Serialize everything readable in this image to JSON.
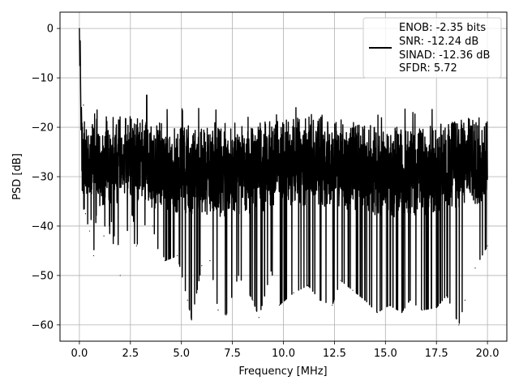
{
  "chart_data": {
    "type": "line",
    "title": "",
    "xlabel": "Frequency [MHz]",
    "ylabel": "PSD [dB]",
    "xlim": [
      -0.95,
      20.95
    ],
    "ylim": [
      -63.3,
      3.3
    ],
    "xticks": [
      0.0,
      2.5,
      5.0,
      7.5,
      10.0,
      12.5,
      15.0,
      17.5,
      20.0
    ],
    "xtick_labels": [
      "0.0",
      "2.5",
      "5.0",
      "7.5",
      "10.0",
      "12.5",
      "15.0",
      "17.5",
      "20.0"
    ],
    "yticks": [
      0,
      -10,
      -20,
      -30,
      -40,
      -50,
      -60
    ],
    "ytick_labels": [
      "0",
      "−10",
      "−20",
      "−30",
      "−40",
      "−50",
      "−60"
    ],
    "grid": true,
    "legend_position": "top-right",
    "legend": {
      "lines": [
        "ENOB: -2.35 bits",
        "SNR: -12.24 dB",
        "SINAD: -12.36 dB",
        "SFDR: 5.72"
      ],
      "color": "#000000"
    },
    "series": [
      {
        "color": "#000000",
        "description_x_range": [
          0.0,
          20.0
        ],
        "x": [
          0.0,
          0.02,
          0.04,
          0.06,
          0.08,
          0.1,
          0.15,
          0.2,
          0.3,
          0.4,
          0.5,
          0.6,
          0.7,
          0.9,
          1.2,
          1.6,
          2.0,
          2.4,
          2.8,
          3.3,
          3.6,
          4.2,
          4.8,
          5.3,
          5.5,
          6.0,
          6.4,
          6.8,
          7.2,
          7.8,
          8.5,
          8.8,
          9.4,
          9.8,
          10.5,
          11.2,
          11.8,
          12.4,
          12.8,
          13.4,
          14.0,
          14.6,
          15.2,
          15.8,
          16.2,
          16.8,
          17.5,
          18.0,
          18.6,
          18.9,
          19.4,
          20.0
        ],
        "values": [
          0.0,
          -7.5,
          -2.5,
          -12.0,
          -20.5,
          -16.0,
          -28.5,
          -15.5,
          -37.5,
          -24.5,
          -41.0,
          -20.0,
          -46.0,
          -28.0,
          -42.0,
          -25.0,
          -50.0,
          -30.0,
          -44.0,
          -13.5,
          -40.0,
          -47.0,
          -46.0,
          -55.0,
          -59.0,
          -48.0,
          -47.0,
          -57.0,
          -58.0,
          -50.0,
          -55.0,
          -58.5,
          -49.0,
          -56.0,
          -53.5,
          -52.0,
          -55.0,
          -56.0,
          -51.0,
          -53.0,
          -55.0,
          -57.5,
          -56.0,
          -57.5,
          -55.0,
          -57.0,
          -56.5,
          -54.0,
          -60.0,
          -55.0,
          -48.5,
          -44.0
        ]
      }
    ]
  }
}
